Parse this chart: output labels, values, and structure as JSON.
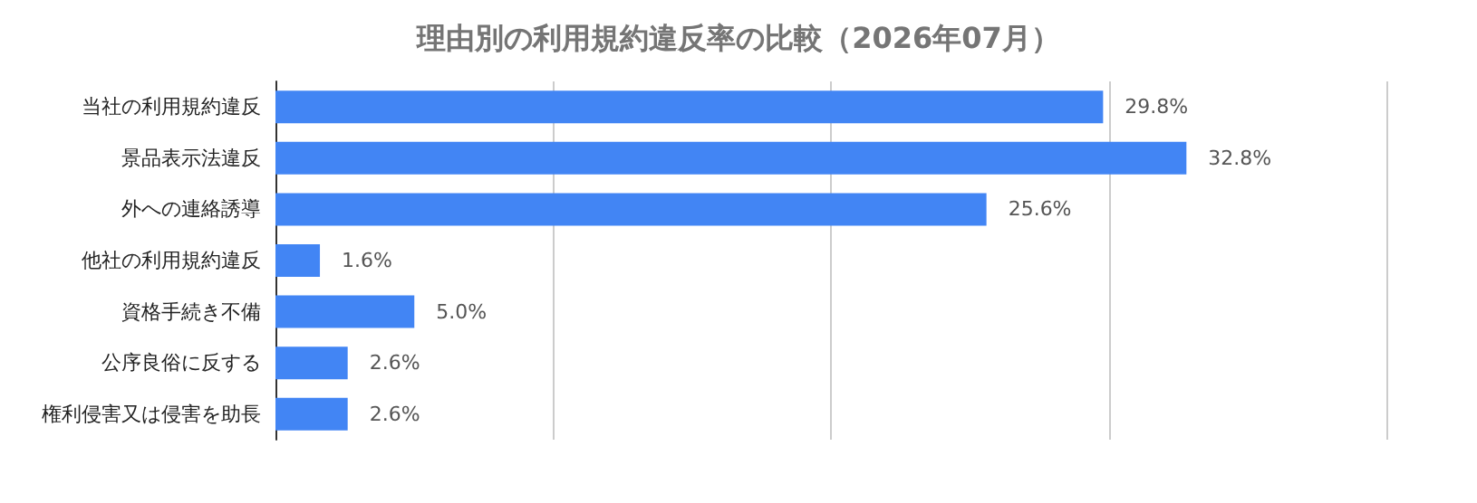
{
  "chart_data": {
    "type": "bar",
    "orientation": "horizontal",
    "title": "理由別の利用規約違反率の比較（2026年07月）",
    "categories": [
      "当社の利用規約違反",
      "景品表示法違反",
      "外への連絡誘導",
      "他社の利用規約違反",
      "資格手続き不備",
      "公序良俗に反する",
      "権利侵害又は侵害を助長"
    ],
    "values": [
      29.8,
      32.8,
      25.6,
      1.6,
      5.0,
      2.6,
      2.6
    ],
    "value_labels": [
      "29.8%",
      "32.8%",
      "25.6%",
      "1.6%",
      "5.0%",
      "2.6%",
      "2.6%"
    ],
    "color": "#4285f4",
    "xlim": [
      0,
      40
    ],
    "xticks": [
      {
        "value": 0,
        "label": null
      },
      {
        "value": 10,
        "label": null
      },
      {
        "value": 20,
        "label": null
      },
      {
        "value": 30,
        "label": null
      },
      {
        "value": 40,
        "label": null
      }
    ],
    "grid": "x",
    "tick_labels": "y"
  }
}
